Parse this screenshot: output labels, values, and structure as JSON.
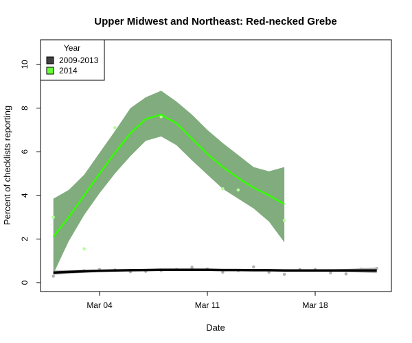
{
  "chart_data": {
    "type": "line",
    "title": "Upper Midwest and Northeast: Red-necked Grebe",
    "xlabel": "Date",
    "ylabel": "Percent of checklists reporting",
    "x_ticks": [
      "Mar 04",
      "Mar 11",
      "Mar 18"
    ],
    "y_ticks": [
      "0",
      "2",
      "4",
      "6",
      "8",
      "10"
    ],
    "ylim": [
      0,
      10
    ],
    "legend": {
      "title": "Year",
      "position": "top-left",
      "entries": [
        {
          "label": "2009-2013",
          "color": "#404040"
        },
        {
          "label": "2014",
          "color": "#66ff33"
        }
      ]
    },
    "series": [
      {
        "name": "2009-2013",
        "color": "#000000",
        "band_color": "#999999",
        "point_color": "#b3b3b3",
        "x": [
          "Mar 01",
          "Mar 02",
          "Mar 03",
          "Mar 04",
          "Mar 05",
          "Mar 06",
          "Mar 07",
          "Mar 08",
          "Mar 09",
          "Mar 10",
          "Mar 11",
          "Mar 12",
          "Mar 13",
          "Mar 14",
          "Mar 15",
          "Mar 16",
          "Mar 17",
          "Mar 18",
          "Mar 19",
          "Mar 20",
          "Mar 21",
          "Mar 22"
        ],
        "y": [
          0.46,
          0.49,
          0.52,
          0.54,
          0.56,
          0.57,
          0.58,
          0.59,
          0.59,
          0.59,
          0.59,
          0.58,
          0.58,
          0.57,
          0.57,
          0.56,
          0.56,
          0.56,
          0.56,
          0.56,
          0.56,
          0.56
        ],
        "ci_low": [
          0.36,
          0.41,
          0.45,
          0.49,
          0.51,
          0.53,
          0.54,
          0.55,
          0.55,
          0.55,
          0.55,
          0.54,
          0.54,
          0.53,
          0.53,
          0.52,
          0.52,
          0.52,
          0.51,
          0.49,
          0.46,
          0.43
        ],
        "ci_high": [
          0.56,
          0.57,
          0.59,
          0.6,
          0.61,
          0.61,
          0.62,
          0.63,
          0.63,
          0.63,
          0.63,
          0.62,
          0.62,
          0.61,
          0.61,
          0.6,
          0.6,
          0.6,
          0.61,
          0.63,
          0.66,
          0.69
        ],
        "points_x": [
          "Mar 01",
          "Mar 02",
          "Mar 03",
          "Mar 04",
          "Mar 05",
          "Mar 06",
          "Mar 07",
          "Mar 08",
          "Mar 09",
          "Mar 10",
          "Mar 11",
          "Mar 12",
          "Mar 13",
          "Mar 14",
          "Mar 15",
          "Mar 16",
          "Mar 17",
          "Mar 18",
          "Mar 19",
          "Mar 20",
          "Mar 21",
          "Mar 22"
        ],
        "points_y": [
          0.3,
          0.5,
          0.55,
          0.6,
          0.58,
          0.5,
          0.52,
          0.55,
          0.6,
          0.7,
          0.62,
          0.48,
          0.55,
          0.72,
          0.48,
          0.38,
          0.6,
          0.6,
          0.45,
          0.4,
          0.62,
          0.65
        ]
      },
      {
        "name": "2014",
        "color": "#33ff00",
        "band_color": "#6b9e67",
        "point_color": "#b3ff99",
        "x": [
          "Mar 01",
          "Mar 02",
          "Mar 03",
          "Mar 04",
          "Mar 05",
          "Mar 06",
          "Mar 07",
          "Mar 08",
          "Mar 09",
          "Mar 10",
          "Mar 11",
          "Mar 12",
          "Mar 13",
          "Mar 14",
          "Mar 15",
          "Mar 16"
        ],
        "y": [
          2.1,
          3.0,
          4.0,
          5.0,
          5.95,
          6.85,
          7.5,
          7.7,
          7.3,
          6.6,
          5.9,
          5.3,
          4.8,
          4.35,
          4.0,
          3.6
        ],
        "ci_low": [
          0.4,
          1.9,
          3.1,
          4.1,
          5.0,
          5.8,
          6.5,
          6.7,
          6.3,
          5.6,
          4.95,
          4.3,
          3.85,
          3.4,
          2.8,
          1.85
        ],
        "ci_high": [
          3.85,
          4.25,
          4.95,
          5.95,
          6.95,
          8.0,
          8.5,
          8.8,
          8.3,
          7.7,
          7.0,
          6.4,
          5.85,
          5.3,
          5.1,
          5.3
        ],
        "points_x": [
          "Mar 01",
          "Mar 03",
          "Mar 05",
          "Mar 08",
          "Mar 12",
          "Mar 13",
          "Mar 16"
        ],
        "points_y": [
          3.0,
          1.55,
          7.1,
          7.6,
          4.3,
          4.25,
          2.85
        ]
      }
    ]
  }
}
